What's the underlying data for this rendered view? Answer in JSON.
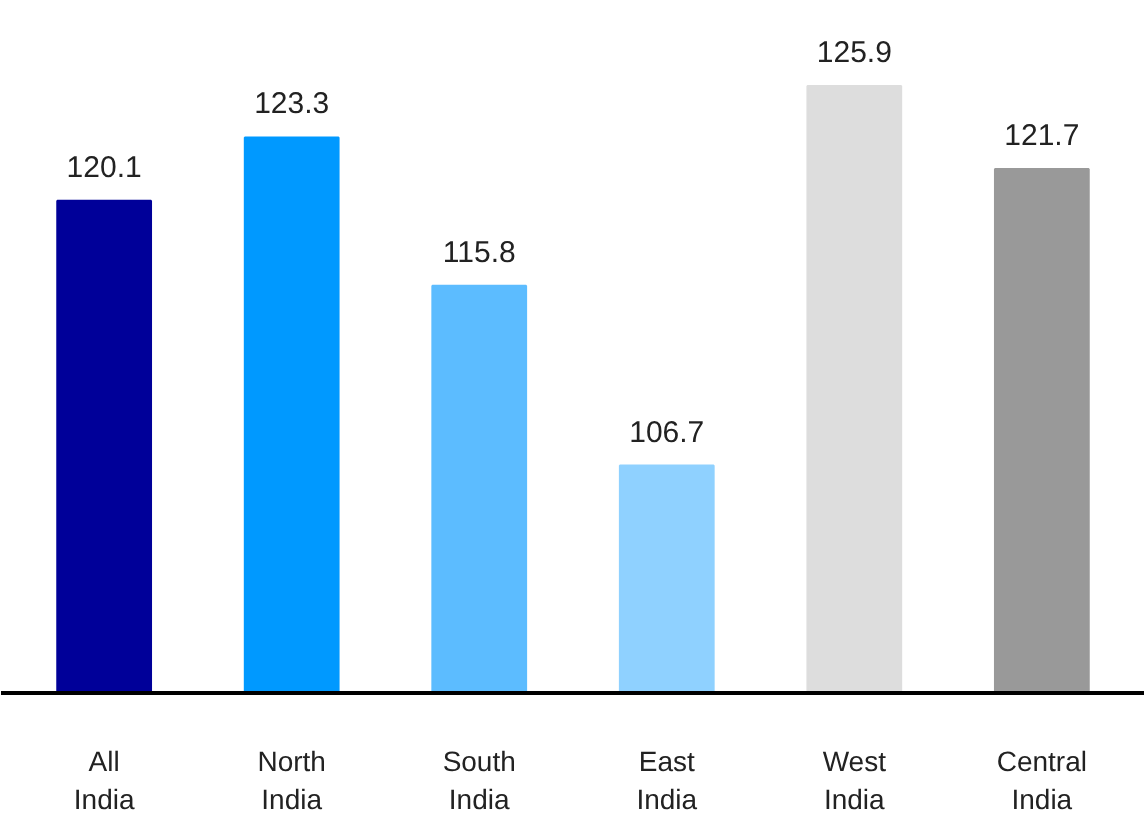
{
  "chart_data": {
    "type": "bar",
    "categories": [
      "All\nIndia",
      "North\nIndia",
      "South\nIndia",
      "East\nIndia",
      "West\nIndia",
      "Central\nIndia"
    ],
    "values": [
      120.1,
      123.3,
      115.8,
      106.7,
      125.9,
      121.7
    ],
    "colors": [
      "#000099",
      "#0099ff",
      "#5cbcff",
      "#8fd1ff",
      "#dddddd",
      "#999999"
    ],
    "ylim": [
      95.2,
      125.9
    ],
    "tick_labels": "x",
    "data_labels": true
  }
}
